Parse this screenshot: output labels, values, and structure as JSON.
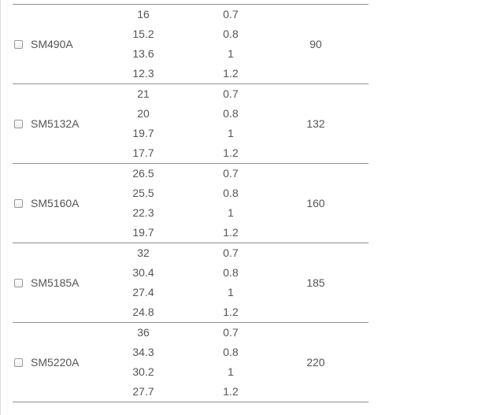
{
  "products": [
    {
      "model": "SM490A",
      "capacity": "90",
      "rows": [
        {
          "a": "16",
          "b": "0.7"
        },
        {
          "a": "15.2",
          "b": "0.8"
        },
        {
          "a": "13.6",
          "b": "1"
        },
        {
          "a": "12.3",
          "b": "1.2"
        }
      ]
    },
    {
      "model": "SM5132A",
      "capacity": "132",
      "rows": [
        {
          "a": "21",
          "b": "0.7"
        },
        {
          "a": "20",
          "b": "0.8"
        },
        {
          "a": "19.7",
          "b": "1"
        },
        {
          "a": "17.7",
          "b": "1.2"
        }
      ]
    },
    {
      "model": "SM5160A",
      "capacity": "160",
      "rows": [
        {
          "a": "26.5",
          "b": "0.7"
        },
        {
          "a": "25.5",
          "b": "0.8"
        },
        {
          "a": "22.3",
          "b": "1"
        },
        {
          "a": "19.7",
          "b": "1.2"
        }
      ]
    },
    {
      "model": "SM5185A",
      "capacity": "185",
      "rows": [
        {
          "a": "32",
          "b": "0.7"
        },
        {
          "a": "30.4",
          "b": "0.8"
        },
        {
          "a": "27.4",
          "b": "1"
        },
        {
          "a": "24.8",
          "b": "1.2"
        }
      ]
    },
    {
      "model": "SM5220A",
      "capacity": "220",
      "rows": [
        {
          "a": "36",
          "b": "0.7"
        },
        {
          "a": "34.3",
          "b": "0.8"
        },
        {
          "a": "30.2",
          "b": "1"
        },
        {
          "a": "27.7",
          "b": "1.2"
        }
      ]
    }
  ]
}
